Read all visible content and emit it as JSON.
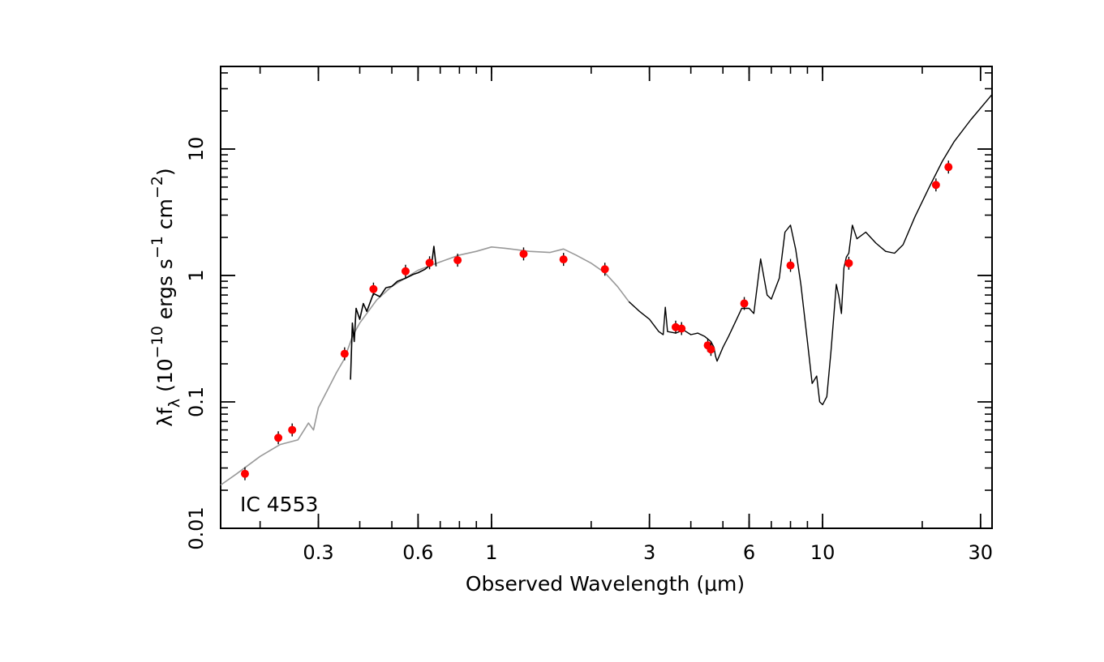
{
  "chart_data": {
    "type": "scatter",
    "title": "",
    "annotation": "IC 4553",
    "xlabel": "Observed Wavelength (μm)",
    "ylabel_parts": {
      "pre": "λf",
      "sub": "λ",
      "mid1": " (10",
      "exp1": "−10",
      "mid2": " ergs s",
      "exp2": "−1",
      "mid3": " cm",
      "exp3": "−2",
      "post": ")"
    },
    "x_scale": "log",
    "y_scale": "log",
    "xlim": [
      0.152,
      32.5
    ],
    "ylim": [
      0.01,
      45
    ],
    "x_ticks": [
      {
        "value": 0.3,
        "label": "0.3"
      },
      {
        "value": 0.6,
        "label": "0.6"
      },
      {
        "value": 1,
        "label": "1"
      },
      {
        "value": 3,
        "label": "3"
      },
      {
        "value": 6,
        "label": "6"
      },
      {
        "value": 10,
        "label": "10"
      },
      {
        "value": 30,
        "label": "30"
      }
    ],
    "y_ticks": [
      {
        "value": 0.01,
        "label": "0.01"
      },
      {
        "value": 0.1,
        "label": "0.1"
      },
      {
        "value": 1,
        "label": "1"
      },
      {
        "value": 10,
        "label": "10"
      }
    ],
    "grid": false,
    "legend": "none",
    "colors": {
      "points": "#ff0000",
      "model": "#999999",
      "spectrum": "#000000"
    },
    "series": [
      {
        "kind": "photometry",
        "x": [
          0.18,
          0.227,
          0.25,
          0.36,
          0.44,
          0.55,
          0.65,
          0.79,
          1.25,
          1.65,
          2.2,
          3.6,
          3.75,
          4.5,
          4.6,
          5.8,
          8.0,
          12.0,
          22.0,
          24.0
        ],
        "y": [
          0.027,
          0.052,
          0.06,
          0.24,
          0.78,
          1.08,
          1.26,
          1.32,
          1.48,
          1.34,
          1.12,
          0.39,
          0.38,
          0.28,
          0.26,
          0.6,
          1.2,
          1.25,
          5.2,
          7.2
        ]
      },
      {
        "kind": "model",
        "x": [
          0.152,
          0.17,
          0.2,
          0.23,
          0.26,
          0.28,
          0.29,
          0.3,
          0.32,
          0.34,
          0.36,
          0.38,
          0.4,
          0.45,
          0.5,
          0.6,
          0.7,
          0.8,
          0.9,
          1.0,
          1.1,
          1.3,
          1.5,
          1.65,
          1.8,
          2.0,
          2.2,
          2.4,
          2.6
        ],
        "y": [
          0.022,
          0.027,
          0.037,
          0.046,
          0.05,
          0.068,
          0.06,
          0.09,
          0.125,
          0.17,
          0.22,
          0.33,
          0.42,
          0.64,
          0.82,
          1.1,
          1.28,
          1.45,
          1.55,
          1.68,
          1.64,
          1.55,
          1.52,
          1.62,
          1.45,
          1.25,
          1.05,
          0.82,
          0.62
        ]
      },
      {
        "kind": "optical-spectrum",
        "x": [
          0.375,
          0.38,
          0.385,
          0.39,
          0.4,
          0.41,
          0.42,
          0.44,
          0.46,
          0.48,
          0.5,
          0.52,
          0.55,
          0.58,
          0.6,
          0.63,
          0.65,
          0.66,
          0.67,
          0.68
        ],
        "y": [
          0.15,
          0.42,
          0.3,
          0.55,
          0.45,
          0.6,
          0.52,
          0.72,
          0.68,
          0.8,
          0.82,
          0.9,
          0.95,
          1.02,
          1.05,
          1.12,
          1.2,
          1.25,
          1.7,
          1.18
        ]
      },
      {
        "kind": "ir-spectrum",
        "x": [
          2.6,
          2.8,
          3.0,
          3.2,
          3.3,
          3.35,
          3.4,
          3.6,
          3.8,
          4.0,
          4.2,
          4.4,
          4.6,
          4.7,
          4.75,
          4.8,
          5.0,
          5.2,
          5.5,
          5.7,
          6.0,
          6.2,
          6.5,
          6.8,
          7.0,
          7.4,
          7.7,
          8.0,
          8.3,
          8.6,
          9.0,
          9.3,
          9.6,
          9.8,
          10.0,
          10.3,
          10.6,
          11.0,
          11.2,
          11.4,
          11.6,
          11.8,
          12.0,
          12.3,
          12.7,
          13.5,
          14.5,
          15.5,
          16.5,
          17.5,
          19.0,
          21.0,
          23.0,
          25.0,
          28.0,
          32.5
        ],
        "y": [
          0.62,
          0.52,
          0.45,
          0.36,
          0.34,
          0.56,
          0.36,
          0.35,
          0.37,
          0.34,
          0.35,
          0.33,
          0.3,
          0.27,
          0.23,
          0.21,
          0.27,
          0.33,
          0.45,
          0.55,
          0.55,
          0.5,
          1.35,
          0.7,
          0.65,
          0.95,
          2.2,
          2.5,
          1.6,
          0.85,
          0.3,
          0.14,
          0.16,
          0.1,
          0.095,
          0.11,
          0.25,
          0.85,
          0.68,
          0.5,
          1.15,
          1.4,
          1.5,
          2.5,
          1.95,
          2.2,
          1.8,
          1.55,
          1.5,
          1.75,
          2.9,
          5.0,
          8.0,
          11.5,
          17.0,
          27.0
        ]
      }
    ]
  }
}
